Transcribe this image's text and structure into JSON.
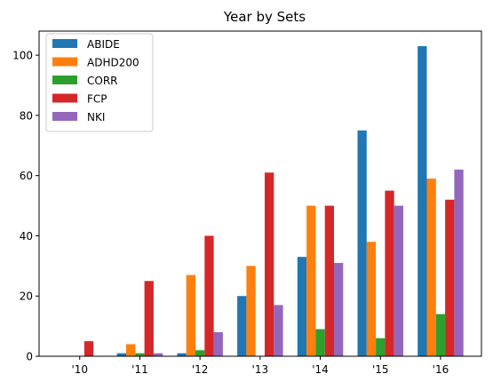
{
  "chart_data": {
    "type": "bar",
    "title": "Year by Sets",
    "xlabel": "",
    "ylabel": "",
    "categories": [
      "'10",
      "'11",
      "'12",
      "'13",
      "'14",
      "'15",
      "'16"
    ],
    "ylim": [
      0,
      108
    ],
    "yticks": [
      0,
      20,
      40,
      60,
      80,
      100
    ],
    "grid": false,
    "legend_position": "top-left",
    "series": [
      {
        "name": "ABIDE",
        "color": "#1f77b4",
        "values": [
          0,
          1,
          1,
          20,
          33,
          75,
          103
        ]
      },
      {
        "name": "ADHD200",
        "color": "#ff7f0e",
        "values": [
          0,
          4,
          27,
          30,
          50,
          38,
          59
        ]
      },
      {
        "name": "CORR",
        "color": "#2ca02c",
        "values": [
          0,
          1,
          2,
          0,
          9,
          6,
          14
        ]
      },
      {
        "name": "FCP",
        "color": "#d62728",
        "values": [
          5,
          25,
          40,
          61,
          50,
          55,
          52
        ]
      },
      {
        "name": "NKI",
        "color": "#9467bd",
        "values": [
          0,
          1,
          8,
          17,
          31,
          50,
          62
        ]
      }
    ]
  }
}
